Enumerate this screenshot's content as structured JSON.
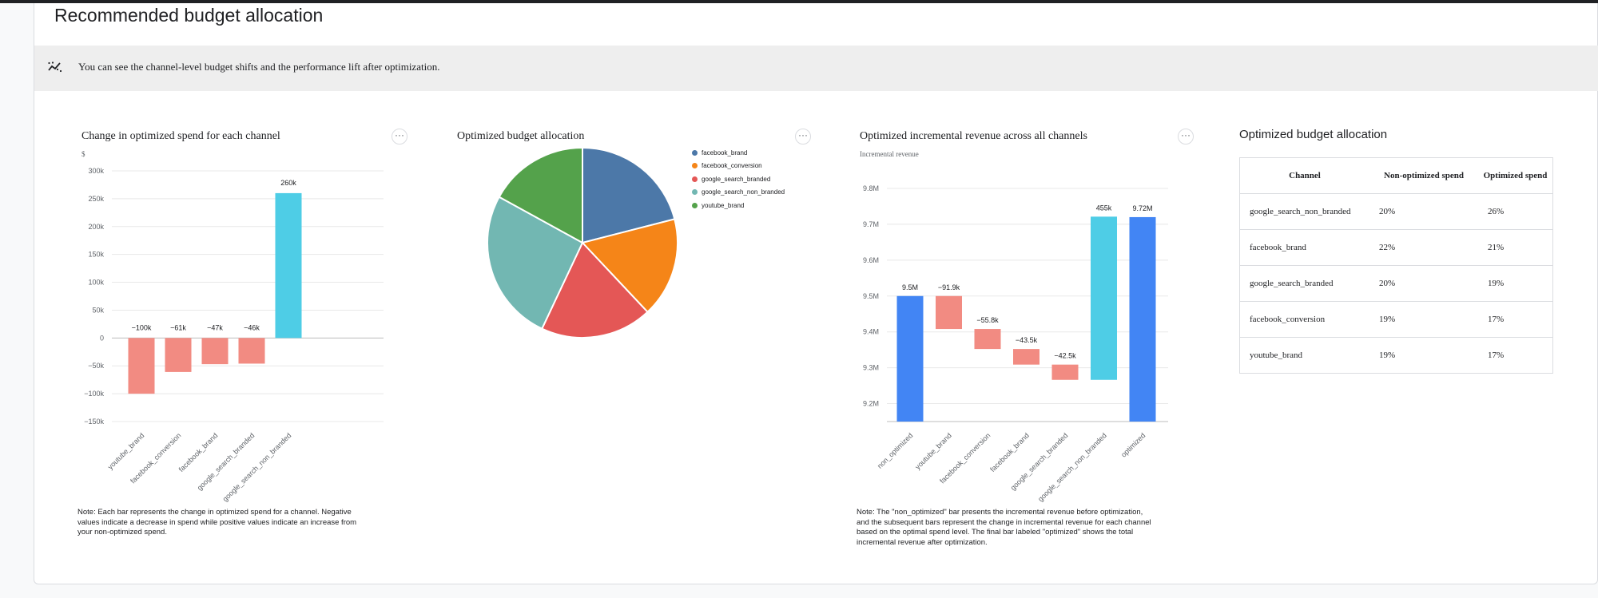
{
  "page": {
    "title": "Recommended budget allocation",
    "banner_text": "You can see the channel-level budget shifts and the performance lift after optimization.",
    "banner_icon": "trend-chart-icon"
  },
  "more_button_label": "···",
  "chart_data": [
    {
      "type": "bar",
      "title": "Change in optimized spend for each channel",
      "ylabel": "$",
      "xlabel": "",
      "categories": [
        "youtube_brand",
        "facebook_conversion",
        "facebook_brand",
        "google_search_branded",
        "google_search_non_branded"
      ],
      "values": [
        -100000,
        -61000,
        -47000,
        -46000,
        260000
      ],
      "data_labels": [
        "−100k",
        "−61k",
        "−47k",
        "−46k",
        "260k"
      ],
      "ylim": [
        -150000,
        300000
      ],
      "ticks": [
        300000,
        250000,
        200000,
        150000,
        100000,
        50000,
        0,
        -50000,
        -100000,
        -150000
      ],
      "tick_labels": [
        "300k",
        "250k",
        "200k",
        "150k",
        "100k",
        "50k",
        "0",
        "−50k",
        "−100k",
        "−150k"
      ],
      "colors": {
        "negative": "#f28b82",
        "positive": "#4ecde6"
      },
      "grid": true,
      "note": "Note: Each bar represents the change in optimized spend for a channel. Negative values indicate a decrease in spend while positive values indicate an increase from your non-optimized spend."
    },
    {
      "type": "pie",
      "title": "Optimized budget allocation",
      "labels": [
        "facebook_brand",
        "facebook_conversion",
        "google_search_branded",
        "google_search_non_branded",
        "youtube_brand"
      ],
      "values": [
        21,
        17,
        19,
        26,
        17
      ],
      "colors": [
        "#4c78a8",
        "#f58518",
        "#e45756",
        "#72b7b2",
        "#54a24b"
      ],
      "legend_position": "right"
    },
    {
      "type": "waterfall",
      "title": "Optimized incremental revenue across all channels",
      "ylabel": "Incremental revenue",
      "categories": [
        "non_optimized",
        "youtube_brand",
        "facebook_conversion",
        "facebook_brand",
        "google_search_branded",
        "google_search_non_branded",
        "optimized"
      ],
      "values": [
        9500000,
        -91900,
        -55800,
        -43500,
        -42500,
        455000,
        9720000
      ],
      "data_labels": [
        "9.5M",
        "−91.9k",
        "−55.8k",
        "−43.5k",
        "−42.5k",
        "455k",
        "9.72M"
      ],
      "ylim": [
        9150000,
        9800000
      ],
      "ticks": [
        9800000,
        9700000,
        9600000,
        9500000,
        9400000,
        9300000,
        9200000
      ],
      "tick_labels": [
        "9.8M",
        "9.7M",
        "9.6M",
        "9.5M",
        "9.4M",
        "9.3M",
        "9.2M"
      ],
      "colors": {
        "total": "#4285f4",
        "negative": "#f28b82",
        "positive": "#4ecde6"
      },
      "grid": true,
      "note": "Note: The \"non_optimized\" bar presents the incremental revenue before optimization, and the subsequent bars represent the change in incremental revenue for each channel based on the optimal spend level. The final bar labeled \"optimized\" shows the total incremental revenue after optimization."
    },
    {
      "type": "table",
      "title": "Optimized budget allocation",
      "columns": [
        "Channel",
        "Non-optimized spend",
        "Optimized spend"
      ],
      "rows": [
        [
          "google_search_non_branded",
          "20%",
          "26%"
        ],
        [
          "facebook_brand",
          "22%",
          "21%"
        ],
        [
          "google_search_branded",
          "20%",
          "19%"
        ],
        [
          "facebook_conversion",
          "19%",
          "17%"
        ],
        [
          "youtube_brand",
          "19%",
          "17%"
        ]
      ]
    }
  ]
}
